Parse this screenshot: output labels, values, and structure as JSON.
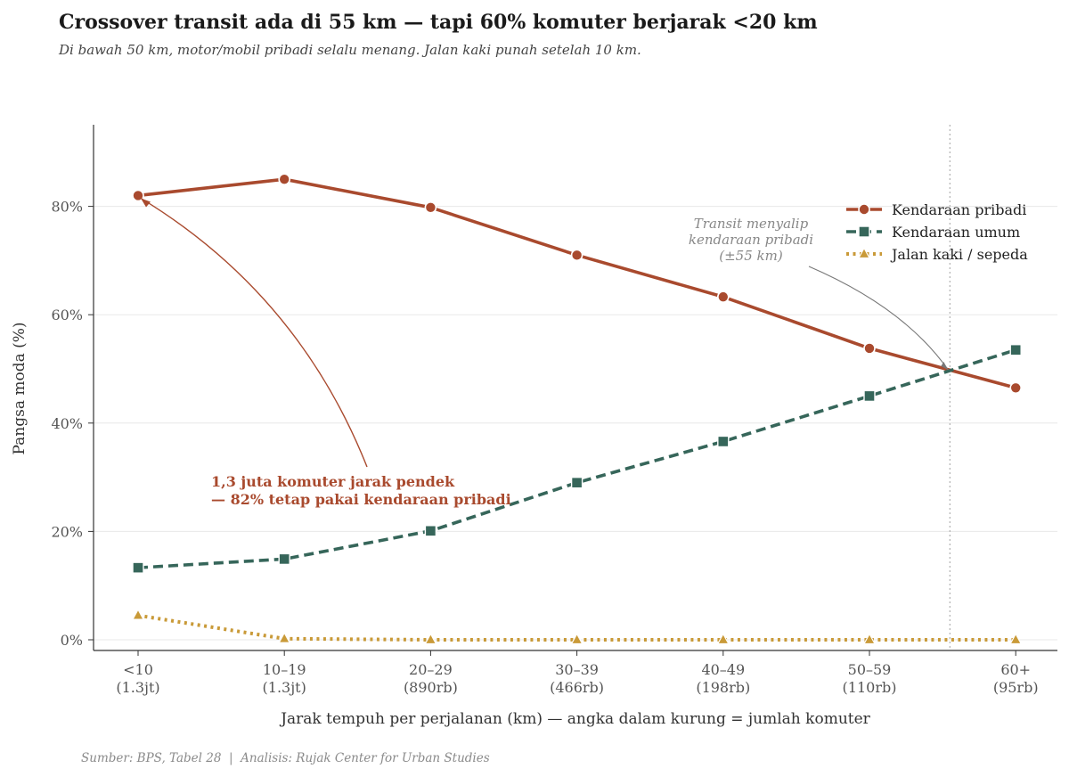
{
  "chart_data": {
    "type": "line",
    "title": "Crossover transit ada di 55 km — tapi 60% komuter berjarak <20 km",
    "subtitle": "Di bawah 50 km, motor/mobil pribadi selalu menang. Jalan kaki punah setelah 10 km.",
    "xlabel": "Jarak tempuh per perjalanan (km) — angka dalam kurung = jumlah komuter",
    "ylabel": "Pangsa moda (%)",
    "categories": [
      {
        "range": "<10",
        "commuters": "(1.3jt)"
      },
      {
        "range": "10–19",
        "commuters": "(1.3jt)"
      },
      {
        "range": "20–29",
        "commuters": "(890rb)"
      },
      {
        "range": "30–39",
        "commuters": "(466rb)"
      },
      {
        "range": "40–49",
        "commuters": "(198rb)"
      },
      {
        "range": "50–59",
        "commuters": "(110rb)"
      },
      {
        "range": "60+",
        "commuters": "(95rb)"
      }
    ],
    "ylim": [
      -2,
      95
    ],
    "yticks": [
      0,
      20,
      40,
      60,
      80
    ],
    "ytick_labels": [
      "0%",
      "20%",
      "40%",
      "60%",
      "80%"
    ],
    "grid": "horizontal",
    "legend_position": "top-right",
    "series": [
      {
        "name": "Kendaraan pribadi",
        "color": "#a94a2e",
        "style": "solid",
        "marker": "circle",
        "values": [
          82.0,
          85.0,
          79.8,
          71.0,
          63.3,
          53.8,
          46.5
        ]
      },
      {
        "name": "Kendaraan umum",
        "color": "#36665a",
        "style": "dashed",
        "marker": "square",
        "values": [
          13.3,
          14.9,
          20.1,
          29.0,
          36.6,
          45.0,
          53.5
        ]
      },
      {
        "name": "Jalan kaki / sepeda",
        "color": "#c99a38",
        "style": "dotted",
        "marker": "triangle",
        "values": [
          4.5,
          0.2,
          0.0,
          0.0,
          0.0,
          0.0,
          0.0
        ]
      }
    ],
    "crossover": {
      "category_position": 5.55,
      "value": 49.5
    },
    "annotations": {
      "crossover_note": [
        "Transit menyalip",
        "kendaraan pribadi",
        "(±55 km)"
      ],
      "short_trip_note": [
        "1,3 juta komuter jarak pendek",
        "— 82% tetap pakai kendaraan pribadi"
      ]
    },
    "source": "Sumber: BPS, Tabel 28  |  Analisis: Rujak Center for Urban Studies"
  }
}
